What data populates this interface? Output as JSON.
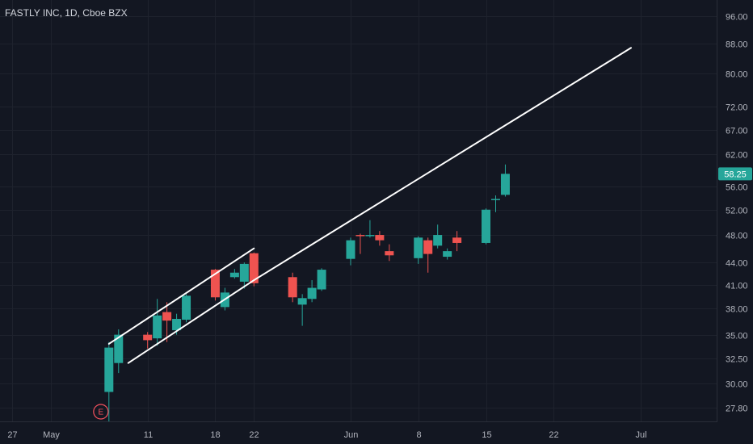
{
  "chart_data": {
    "type": "candlestick",
    "title": "FASTLY INC, 1D, Cboe BZX",
    "y_scale": "log",
    "ylim": [
      26.6,
      101
    ],
    "grid": true,
    "y_ticks": [
      {
        "value": 96,
        "label": "96.00"
      },
      {
        "value": 88,
        "label": "88.00"
      },
      {
        "value": 80,
        "label": "80.00"
      },
      {
        "value": 72,
        "label": "72.00"
      },
      {
        "value": 67,
        "label": "67.00"
      },
      {
        "value": 62,
        "label": "62.00"
      },
      {
        "value": 56,
        "label": "56.00"
      },
      {
        "value": 52,
        "label": "52.00"
      },
      {
        "value": 48,
        "label": "48.00"
      },
      {
        "value": 44,
        "label": "44.00"
      },
      {
        "value": 41,
        "label": "41.00"
      },
      {
        "value": 38,
        "label": "38.00"
      },
      {
        "value": 35,
        "label": "35.00"
      },
      {
        "value": 32.5,
        "label": "32.50"
      },
      {
        "value": 30,
        "label": "30.00"
      },
      {
        "value": 27.8,
        "label": "27.80"
      }
    ],
    "x_ticks": [
      {
        "date": "2020-04-27",
        "label": "27"
      },
      {
        "date": "2020-05-01",
        "label": "May"
      },
      {
        "date": "2020-05-11",
        "label": "11"
      },
      {
        "date": "2020-05-18",
        "label": "18"
      },
      {
        "date": "2020-05-22",
        "label": "22"
      },
      {
        "date": "2020-06-01",
        "label": "Jun"
      },
      {
        "date": "2020-06-08",
        "label": "8"
      },
      {
        "date": "2020-06-15",
        "label": "15"
      },
      {
        "date": "2020-06-22",
        "label": "22"
      },
      {
        "date": "2020-07-01",
        "label": "Jul"
      }
    ],
    "candles": [
      {
        "date": "2020-05-07",
        "open": 29.2,
        "high": 34.2,
        "low": 26.3,
        "close": 33.6
      },
      {
        "date": "2020-05-08",
        "open": 32.0,
        "high": 35.6,
        "low": 31.0,
        "close": 35.0
      },
      {
        "date": "2020-05-11",
        "open": 35.0,
        "high": 35.3,
        "low": 33.5,
        "close": 34.4
      },
      {
        "date": "2020-05-12",
        "open": 34.6,
        "high": 39.2,
        "low": 33.8,
        "close": 37.2
      },
      {
        "date": "2020-05-13",
        "open": 37.6,
        "high": 38.8,
        "low": 34.2,
        "close": 36.6
      },
      {
        "date": "2020-05-14",
        "open": 35.5,
        "high": 37.4,
        "low": 35.0,
        "close": 36.8
      },
      {
        "date": "2020-05-15",
        "open": 36.7,
        "high": 39.8,
        "low": 36.4,
        "close": 39.6
      },
      {
        "date": "2020-05-18",
        "open": 43.0,
        "high": 43.1,
        "low": 39.0,
        "close": 39.4
      },
      {
        "date": "2020-05-19",
        "open": 38.2,
        "high": 40.6,
        "low": 37.8,
        "close": 40.0
      },
      {
        "date": "2020-05-20",
        "open": 42.0,
        "high": 43.1,
        "low": 41.8,
        "close": 42.6
      },
      {
        "date": "2020-05-21",
        "open": 41.4,
        "high": 44.0,
        "low": 40.5,
        "close": 43.8
      },
      {
        "date": "2020-05-22",
        "open": 45.3,
        "high": 45.4,
        "low": 40.8,
        "close": 41.2
      },
      {
        "date": "2020-05-26",
        "open": 42.0,
        "high": 42.6,
        "low": 38.8,
        "close": 39.4
      },
      {
        "date": "2020-05-27",
        "open": 38.5,
        "high": 39.8,
        "low": 36.0,
        "close": 39.3
      },
      {
        "date": "2020-05-28",
        "open": 39.2,
        "high": 41.6,
        "low": 38.8,
        "close": 40.6
      },
      {
        "date": "2020-05-29",
        "open": 40.4,
        "high": 43.2,
        "low": 40.2,
        "close": 43.0
      },
      {
        "date": "2020-06-01",
        "open": 44.5,
        "high": 47.6,
        "low": 43.6,
        "close": 47.2
      },
      {
        "date": "2020-06-02",
        "open": 48.0,
        "high": 48.2,
        "low": 45.2,
        "close": 47.9
      },
      {
        "date": "2020-06-03",
        "open": 47.9,
        "high": 50.3,
        "low": 47.6,
        "close": 48.0
      },
      {
        "date": "2020-06-04",
        "open": 48.0,
        "high": 48.6,
        "low": 46.4,
        "close": 47.2
      },
      {
        "date": "2020-06-05",
        "open": 45.6,
        "high": 46.6,
        "low": 44.2,
        "close": 45.0
      },
      {
        "date": "2020-06-08",
        "open": 44.6,
        "high": 47.8,
        "low": 43.8,
        "close": 47.6
      },
      {
        "date": "2020-06-09",
        "open": 47.2,
        "high": 47.6,
        "low": 42.6,
        "close": 45.2
      },
      {
        "date": "2020-06-10",
        "open": 46.4,
        "high": 49.6,
        "low": 46.0,
        "close": 48.0
      },
      {
        "date": "2020-06-11",
        "open": 44.8,
        "high": 46.0,
        "low": 44.4,
        "close": 45.6
      },
      {
        "date": "2020-06-12",
        "open": 47.6,
        "high": 48.6,
        "low": 45.6,
        "close": 46.8
      },
      {
        "date": "2020-06-15",
        "open": 46.8,
        "high": 52.2,
        "low": 46.6,
        "close": 52.0
      },
      {
        "date": "2020-06-16",
        "open": 53.6,
        "high": 54.4,
        "low": 51.6,
        "close": 53.8
      },
      {
        "date": "2020-06-17",
        "open": 54.5,
        "high": 60.0,
        "low": 54.2,
        "close": 58.25
      }
    ],
    "trendlines": [
      {
        "from": {
          "date": "2020-05-07",
          "value": 34.0
        },
        "to": {
          "date": "2020-05-22",
          "value": 46.0
        }
      },
      {
        "from": {
          "date": "2020-05-09",
          "value": 32.0
        },
        "to": {
          "date": "2020-05-22",
          "value": 41.6
        }
      },
      {
        "from": {
          "date": "2020-05-22",
          "value": 41.6
        },
        "to": {
          "date": "2020-06-30",
          "value": 86.8
        }
      }
    ],
    "events": [
      {
        "date": "2020-05-06",
        "label": "E"
      }
    ],
    "last_price": {
      "value": 58.25,
      "label": "58.25"
    },
    "colors": {
      "background": "#131722",
      "grid": "#1e222d",
      "up": "#26a69a",
      "down": "#ef5350",
      "trendline": "#ffffff",
      "price_tag": "#26a69a"
    }
  }
}
